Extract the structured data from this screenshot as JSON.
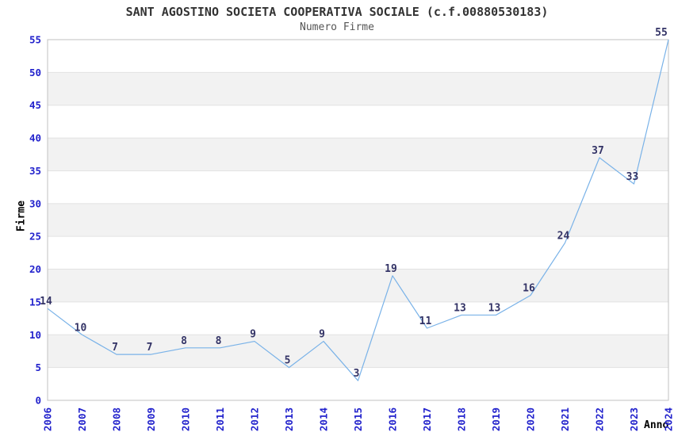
{
  "chart_data": {
    "type": "line",
    "title": "SANT AGOSTINO SOCIETA COOPERATIVA SOCIALE (c.f.00880530183)",
    "subtitle": "Numero Firme",
    "xlabel": "Anno",
    "ylabel": "Firme",
    "categories": [
      "2006",
      "2007",
      "2008",
      "2009",
      "2010",
      "2011",
      "2012",
      "2013",
      "2014",
      "2015",
      "2016",
      "2017",
      "2018",
      "2019",
      "2020",
      "2021",
      "2022",
      "2023",
      "2024"
    ],
    "values": [
      14,
      10,
      7,
      7,
      8,
      8,
      9,
      5,
      9,
      3,
      19,
      11,
      13,
      13,
      16,
      24,
      37,
      33,
      55
    ],
    "ylim": [
      0,
      55
    ],
    "ytick_step": 5,
    "grid": true,
    "legend": "none",
    "layout": {
      "alternating_bands": true,
      "x_labels_rotated_90_deg": true,
      "data_labels_above_points": true
    },
    "colors": {
      "line": "#79b2e8",
      "tick_label": "#2222cc",
      "data_label": "#333366",
      "band": "#f2f2f2",
      "gridline": "#e2e2e2",
      "plot_border": "#c0c0c0",
      "title": "#333333",
      "subtitle": "#555555",
      "axis_title": "#000000",
      "background": "#ffffff"
    }
  }
}
